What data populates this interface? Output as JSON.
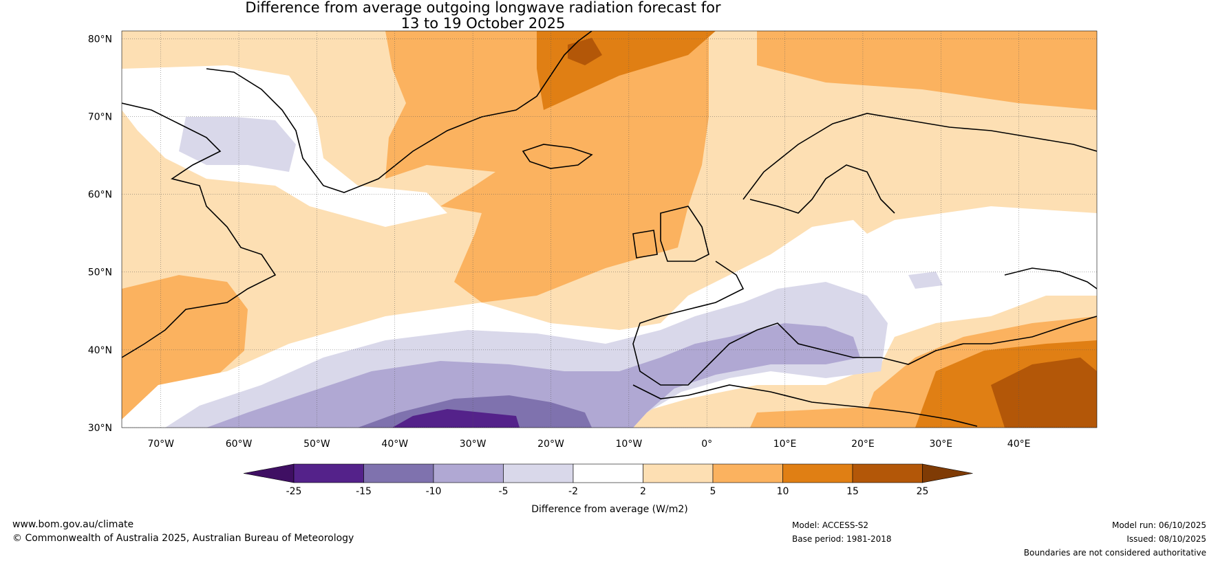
{
  "title": {
    "line1": "Difference from average outgoing longwave radiation forecast for",
    "line2": "13 to 19 October 2025"
  },
  "map": {
    "lat_labels": [
      "80°N",
      "70°N",
      "60°N",
      "50°N",
      "40°N",
      "30°N"
    ],
    "lon_labels": [
      "70°W",
      "60°W",
      "50°W",
      "40°W",
      "30°W",
      "20°W",
      "10°W",
      "0°",
      "10°E",
      "20°E",
      "30°E",
      "40°E"
    ],
    "extent": {
      "lon_min": -75,
      "lon_max": 50,
      "lat_min": 30,
      "lat_max": 81
    }
  },
  "legend": {
    "title": "Difference from average (W/m2)",
    "ticks": [
      "-25",
      "-15",
      "-10",
      "-5",
      "-2",
      "2",
      "5",
      "10",
      "15",
      "25"
    ],
    "colors": [
      "#3f0f63",
      "#54228a",
      "#7f72ae",
      "#b0a8d3",
      "#d9d8ea",
      "#ffffff",
      "#fddfb3",
      "#fbb25f",
      "#e07f14",
      "#b35708",
      "#7f3b05"
    ]
  },
  "footer": {
    "site": "www.bom.gov.au/climate",
    "copyright": "© Commonwealth of Australia 2025, Australian Bureau of Meteorology",
    "model": "Model: ACCESS-S2",
    "base_period": "Base period: 1981-2018",
    "model_run": "Model run: 06/10/2025",
    "issued": "Issued: 08/10/2025",
    "boundaries": "Boundaries are not considered authoritative"
  }
}
